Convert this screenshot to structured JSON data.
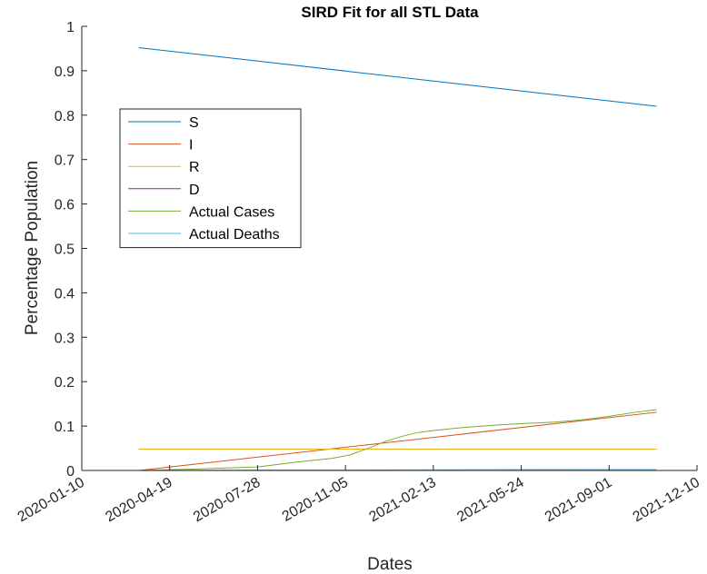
{
  "chart_data": {
    "type": "line",
    "title": "SIRD Fit for all STL Data",
    "xlabel": "Dates",
    "ylabel": "Percentage Population",
    "xlim": [
      "2020-01-10",
      "2021-12-10"
    ],
    "ylim": [
      0,
      1
    ],
    "x_ticks": [
      "2020-01-10",
      "2020-04-19",
      "2020-07-28",
      "2020-11-05",
      "2021-02-13",
      "2021-05-24",
      "2021-09-01",
      "2021-12-10"
    ],
    "y_ticks": [
      "0",
      "0.1",
      "0.2",
      "0.3",
      "0.4",
      "0.5",
      "0.6",
      "0.7",
      "0.8",
      "0.9",
      "1"
    ],
    "grid": false,
    "legend_position": "top-left",
    "series": [
      {
        "name": "S",
        "color": "#0072BD",
        "x": [
          "2020-03-15",
          "2021-10-25"
        ],
        "y": [
          0.952,
          0.82
        ]
      },
      {
        "name": "I",
        "color": "#D95319",
        "x": [
          "2020-03-15",
          "2021-10-25"
        ],
        "y": [
          0.0,
          0.131
        ]
      },
      {
        "name": "R",
        "color": "#EDB120",
        "x": [
          "2020-03-15",
          "2021-10-25"
        ],
        "y": [
          0.048,
          0.048
        ]
      },
      {
        "name": "D",
        "color": "#7E2F8E",
        "x": [
          "2020-03-15",
          "2021-10-25"
        ],
        "y": [
          0.0,
          0.002
        ]
      },
      {
        "name": "Actual Cases",
        "color": "#77AC30",
        "x": [
          "2020-03-15",
          "2020-05-15",
          "2020-07-28",
          "2020-09-15",
          "2020-10-20",
          "2020-11-10",
          "2020-12-01",
          "2020-12-20",
          "2021-01-05",
          "2021-01-25",
          "2021-02-13",
          "2021-03-20",
          "2021-05-01",
          "2021-06-01",
          "2021-07-01",
          "2021-08-01",
          "2021-09-01",
          "2021-10-01",
          "2021-10-25"
        ],
        "y": [
          0.0,
          0.003,
          0.008,
          0.02,
          0.027,
          0.035,
          0.05,
          0.065,
          0.075,
          0.085,
          0.09,
          0.097,
          0.103,
          0.106,
          0.109,
          0.114,
          0.122,
          0.131,
          0.137
        ]
      },
      {
        "name": "Actual Deaths",
        "color": "#4DBEEE",
        "x": [
          "2020-03-15",
          "2020-07-28",
          "2020-11-05",
          "2021-02-13",
          "2021-10-25"
        ],
        "y": [
          0.0,
          0.0005,
          0.001,
          0.0015,
          0.002
        ]
      }
    ]
  }
}
